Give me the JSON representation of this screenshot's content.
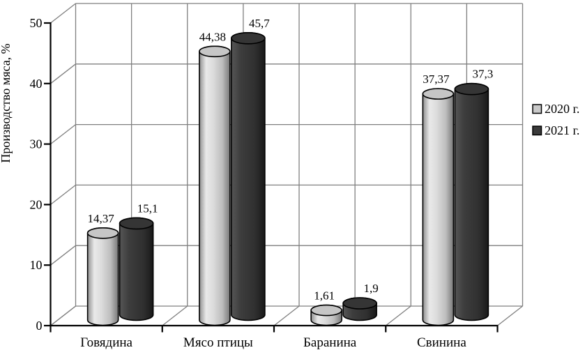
{
  "chart_data": {
    "type": "bar",
    "subtype": "3d-cylinder",
    "title": "",
    "xlabel": "",
    "ylabel": "Производство мяса, %",
    "ylim": [
      0,
      50
    ],
    "ytick_step": 10,
    "ytick_labels": [
      "0",
      "10",
      "20",
      "30",
      "40",
      "50"
    ],
    "grid": true,
    "legend_position": "right",
    "categories": [
      "Говядина",
      "Мясо птицы",
      "Баранина",
      "Свинина"
    ],
    "series": [
      {
        "name": "2020 г.",
        "values": [
          14.37,
          44.38,
          1.61,
          37.37
        ],
        "value_labels": [
          "14,37",
          "44,38",
          "1,61",
          "37,37"
        ],
        "color": "#c9c9c9"
      },
      {
        "name": "2021 г.",
        "values": [
          15.1,
          45.7,
          1.9,
          37.3
        ],
        "value_labels": [
          "15,1",
          "45,7",
          "1,9",
          "37,3"
        ],
        "color": "#3a3a3a"
      }
    ]
  },
  "colors": {
    "background": "#ffffff",
    "axis": "#000000",
    "grid": "#7f7f7f",
    "text": "#000000",
    "series_2020_fill": "#c9c9c9",
    "series_2021_fill": "#3a3a3a"
  }
}
